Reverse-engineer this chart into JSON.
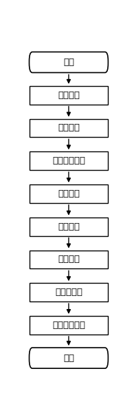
{
  "nodes": [
    {
      "label": "开始",
      "shape": "stadium"
    },
    {
      "label": "数据读取",
      "shape": "rect"
    },
    {
      "label": "河道分割",
      "shape": "rect"
    },
    {
      "label": "网格间距计算",
      "shape": "rect"
    },
    {
      "label": "内插网点",
      "shape": "rect"
    },
    {
      "label": "网格剖分",
      "shape": "rect"
    },
    {
      "label": "网格归并",
      "shape": "rect"
    },
    {
      "label": "网格正交化",
      "shape": "rect"
    },
    {
      "label": "输出节点坐标",
      "shape": "rect"
    },
    {
      "label": "结束",
      "shape": "stadium"
    }
  ],
  "bg_color": "#ffffff",
  "box_facecolor": "#ffffff",
  "box_edgecolor": "#000000",
  "arrow_color": "#000000",
  "text_color": "#000000",
  "font_size": 9.5,
  "fig_width": 1.95,
  "fig_height": 6.0,
  "dpi": 100
}
